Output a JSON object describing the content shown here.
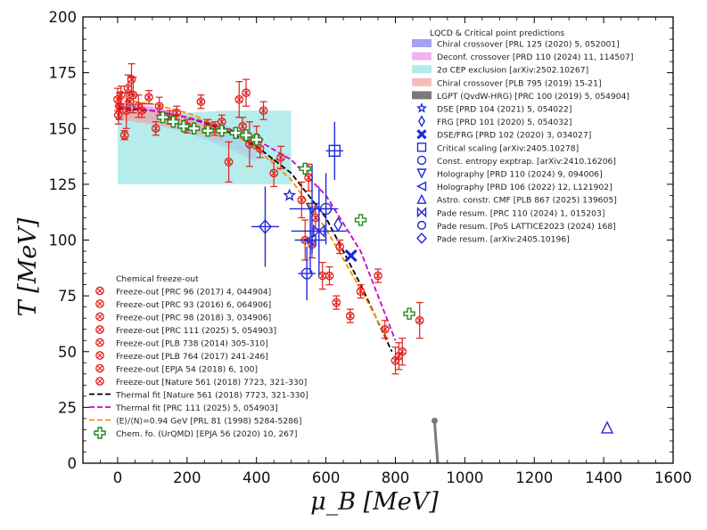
{
  "chart_data": {
    "type": "scatter",
    "xlabel": "μ_B [MeV]",
    "ylabel": "T [MeV]",
    "xlim": [
      -100,
      1600
    ],
    "ylim": [
      0,
      200
    ],
    "xticks": [
      "0",
      "200",
      "400",
      "600",
      "800",
      "1000",
      "1200",
      "1400",
      "1600"
    ],
    "yticks": [
      "0",
      "25",
      "50",
      "75",
      "100",
      "125",
      "150",
      "175",
      "200"
    ],
    "grid": false,
    "legend_titles": {
      "predictions": "LQCD & Critical point predictions",
      "freezeout": "Chemical freeze-out"
    },
    "bands": [
      {
        "name": "Chiral crossover [PRL 125 (2020) 5, 052001]",
        "color": "#8c8cf0",
        "x": [
          0,
          100,
          200,
          300,
          350,
          400
        ],
        "low": [
          155,
          153,
          149,
          143,
          140,
          136
        ],
        "high": [
          161,
          159,
          156,
          152,
          149,
          146
        ]
      },
      {
        "name": "Deconf. crossover [PRD 110 (2024) 11, 114507]",
        "color": "#e8a0ef",
        "x": [
          0,
          100,
          200,
          300,
          400
        ],
        "low": [
          154,
          152,
          148,
          142,
          135
        ],
        "high": [
          162,
          160,
          156,
          150,
          143
        ]
      },
      {
        "name": "2σ CEP exclusion [arXiv:2502.10267]",
        "color": "#9ee6e6",
        "x": [
          0,
          100,
          200,
          300,
          400,
          500
        ],
        "low": [
          125,
          125,
          125,
          125,
          125,
          125
        ],
        "high": [
          156,
          157,
          157,
          158,
          158,
          158
        ]
      },
      {
        "name": "Chiral crossover [PLB 795 (2019) 15-21]",
        "color": "#f3aaa9",
        "x": [
          0,
          100,
          200,
          300
        ],
        "low": [
          154,
          152,
          149,
          145
        ],
        "high": [
          160,
          158,
          155,
          151
        ]
      },
      {
        "name": "LGPT (QvdW-HRG) [PRC 100 (2019) 5, 054904]",
        "color": "#7a7a7a",
        "x": [
          913,
          915,
          918,
          920,
          922
        ],
        "y": [
          19,
          14,
          8,
          4,
          0
        ]
      }
    ],
    "lines": [
      {
        "name": "Thermal fit [Nature 561 (2018) 7723, 321-330]",
        "color": "#000000",
        "x": [
          0,
          100,
          200,
          300,
          400,
          500,
          600,
          700,
          790
        ],
        "y": [
          159,
          158,
          155,
          150,
          142,
          130,
          110,
          80,
          50
        ]
      },
      {
        "name": "Thermal fit [PRC 111 (2025) 5, 054903]",
        "color": "#cc00cc",
        "x": [
          0,
          100,
          200,
          300,
          400,
          500,
          600,
          700,
          800
        ],
        "y": [
          160,
          158,
          155,
          151,
          145,
          136,
          120,
          95,
          55
        ]
      },
      {
        "name": "⟨E⟩/⟨N⟩=0.94 GeV [PRL 81 (1998) 5284-5286]",
        "color": "#ff8c00",
        "x": [
          0,
          100,
          200,
          300,
          400,
          500,
          600,
          700,
          780
        ],
        "y": [
          163,
          161,
          157,
          151,
          141,
          127,
          105,
          78,
          55
        ]
      }
    ],
    "freezeout": {
      "names": [
        "Freeze-out [PRC 96 (2017) 4, 044904]",
        "Freeze-out [PRC 93 (2016) 6, 064906]",
        "Freeze-out [PRC 98 (2018) 3, 034906]",
        "Freeze-out [PRC 111 (2025) 5, 054903]",
        "Freeze-out [PLB 738 (2014) 305-310]",
        "Freeze-out [PLB 764 (2017) 241-246]",
        "Freeze-out [EPJA 54 (2018) 6, 100]",
        "Freeze-out [Nature 561 (2018) 7723, 321-330]"
      ],
      "color": "#e0201c",
      "points": [
        {
          "x": 0,
          "y": 163,
          "e": 5
        },
        {
          "x": 2,
          "y": 156,
          "e": 4
        },
        {
          "x": 5,
          "y": 160,
          "e": 6
        },
        {
          "x": 10,
          "y": 165,
          "e": 4
        },
        {
          "x": 20,
          "y": 147,
          "e": 2
        },
        {
          "x": 25,
          "y": 158,
          "e": 8
        },
        {
          "x": 30,
          "y": 168,
          "e": 6
        },
        {
          "x": 35,
          "y": 162,
          "e": 4
        },
        {
          "x": 40,
          "y": 172,
          "e": 7
        },
        {
          "x": 45,
          "y": 165,
          "e": 8
        },
        {
          "x": 60,
          "y": 160,
          "e": 5
        },
        {
          "x": 70,
          "y": 158,
          "e": 3
        },
        {
          "x": 90,
          "y": 164,
          "e": 3
        },
        {
          "x": 110,
          "y": 150,
          "e": 3
        },
        {
          "x": 120,
          "y": 160,
          "e": 4
        },
        {
          "x": 150,
          "y": 155,
          "e": 3
        },
        {
          "x": 170,
          "y": 157,
          "e": 3
        },
        {
          "x": 200,
          "y": 151,
          "e": 3
        },
        {
          "x": 240,
          "y": 162,
          "e": 3
        },
        {
          "x": 260,
          "y": 151,
          "e": 3
        },
        {
          "x": 280,
          "y": 150,
          "e": 3
        },
        {
          "x": 300,
          "y": 153,
          "e": 3
        },
        {
          "x": 320,
          "y": 135,
          "e": 9
        },
        {
          "x": 350,
          "y": 163,
          "e": 8
        },
        {
          "x": 360,
          "y": 151,
          "e": 4
        },
        {
          "x": 370,
          "y": 166,
          "e": 6
        },
        {
          "x": 380,
          "y": 143,
          "e": 10
        },
        {
          "x": 400,
          "y": 146,
          "e": 5
        },
        {
          "x": 410,
          "y": 141,
          "e": 4
        },
        {
          "x": 420,
          "y": 158,
          "e": 4
        },
        {
          "x": 450,
          "y": 130,
          "e": 6
        },
        {
          "x": 470,
          "y": 137,
          "e": 5
        },
        {
          "x": 530,
          "y": 118,
          "e": 8
        },
        {
          "x": 540,
          "y": 100,
          "e": 9
        },
        {
          "x": 550,
          "y": 128,
          "e": 6
        },
        {
          "x": 560,
          "y": 98,
          "e": 6
        },
        {
          "x": 570,
          "y": 110,
          "e": 5
        },
        {
          "x": 590,
          "y": 84,
          "e": 6
        },
        {
          "x": 610,
          "y": 84,
          "e": 4
        },
        {
          "x": 630,
          "y": 72,
          "e": 3
        },
        {
          "x": 640,
          "y": 97,
          "e": 3
        },
        {
          "x": 670,
          "y": 66,
          "e": 3
        },
        {
          "x": 700,
          "y": 77,
          "e": 3
        },
        {
          "x": 750,
          "y": 84,
          "e": 3
        },
        {
          "x": 770,
          "y": 60,
          "e": 4
        },
        {
          "x": 800,
          "y": 46,
          "e": 6
        },
        {
          "x": 810,
          "y": 48,
          "e": 6
        },
        {
          "x": 820,
          "y": 50,
          "e": 6
        },
        {
          "x": 870,
          "y": 64,
          "e": 8
        }
      ]
    },
    "urqmd": {
      "name": "Chem. fo. (UrQMD) [EPJA 56 (2020) 10, 267]",
      "color": "#1b8a1b",
      "points": [
        {
          "x": 130,
          "y": 155
        },
        {
          "x": 160,
          "y": 153
        },
        {
          "x": 190,
          "y": 151
        },
        {
          "x": 220,
          "y": 150
        },
        {
          "x": 260,
          "y": 149
        },
        {
          "x": 300,
          "y": 149
        },
        {
          "x": 340,
          "y": 148
        },
        {
          "x": 370,
          "y": 147
        },
        {
          "x": 400,
          "y": 145
        },
        {
          "x": 540,
          "y": 132
        },
        {
          "x": 700,
          "y": 109
        },
        {
          "x": 840,
          "y": 67
        }
      ]
    },
    "cep_points": [
      {
        "name": "DSE [PRD 104 (2021) 5, 054022]",
        "marker": "star",
        "x": 495,
        "y": 120,
        "ex": 0,
        "ey": 0
      },
      {
        "name": "FRG [PRD 101 (2020) 5, 054032]",
        "marker": "diamond",
        "x": 635,
        "y": 107,
        "ex": 0,
        "ey": 0
      },
      {
        "name": "DSE/FRG [PRD 102 (2020) 3, 034027]",
        "marker": "x",
        "x": 672,
        "y": 93,
        "ex": 0,
        "ey": 0
      },
      {
        "name": "Critical scaling [arXiv:2405.10278]",
        "marker": "square",
        "x": 625,
        "y": 140,
        "ex": 25,
        "ey": 13
      },
      {
        "name": "Const. entropy exptrap. [arXiv:2410.16206]",
        "marker": "circle",
        "x": 600,
        "y": 114,
        "ex": 35,
        "ey": 16
      },
      {
        "name": "Holography [PRD 110 (2024) 9, 094006]",
        "marker": "triangle_down",
        "x": 560,
        "y": 114,
        "ex": 65,
        "ey": 20
      },
      {
        "name": "Holography [PRD 106 (2022) 12, L121902]",
        "marker": "triangle_left",
        "x": 555,
        "y": 100,
        "ex": 45,
        "ey": 15
      },
      {
        "name": "Astro. constr. CMF [PLB 867 (2025) 139605]",
        "marker": "triangle_up",
        "x": 1410,
        "y": 16,
        "ex": 0,
        "ey": 0
      },
      {
        "name": "Pade resum. [PRC 110 (2024) 1, 015203]",
        "marker": "hourglass",
        "x": 580,
        "y": 104,
        "ex": 80,
        "ey": 20
      },
      {
        "name": "Pade resum. [PoS LATTICE2023 (2024) 168]",
        "marker": "octagon",
        "x": 545,
        "y": 85,
        "ex": 25,
        "ey": 12
      },
      {
        "name": "Pade resum. [arXiv:2405.10196]",
        "marker": "diamond_big",
        "x": 425,
        "y": 106,
        "ex": 40,
        "ey": 18
      }
    ],
    "cep_color": "#1f2ad9"
  }
}
